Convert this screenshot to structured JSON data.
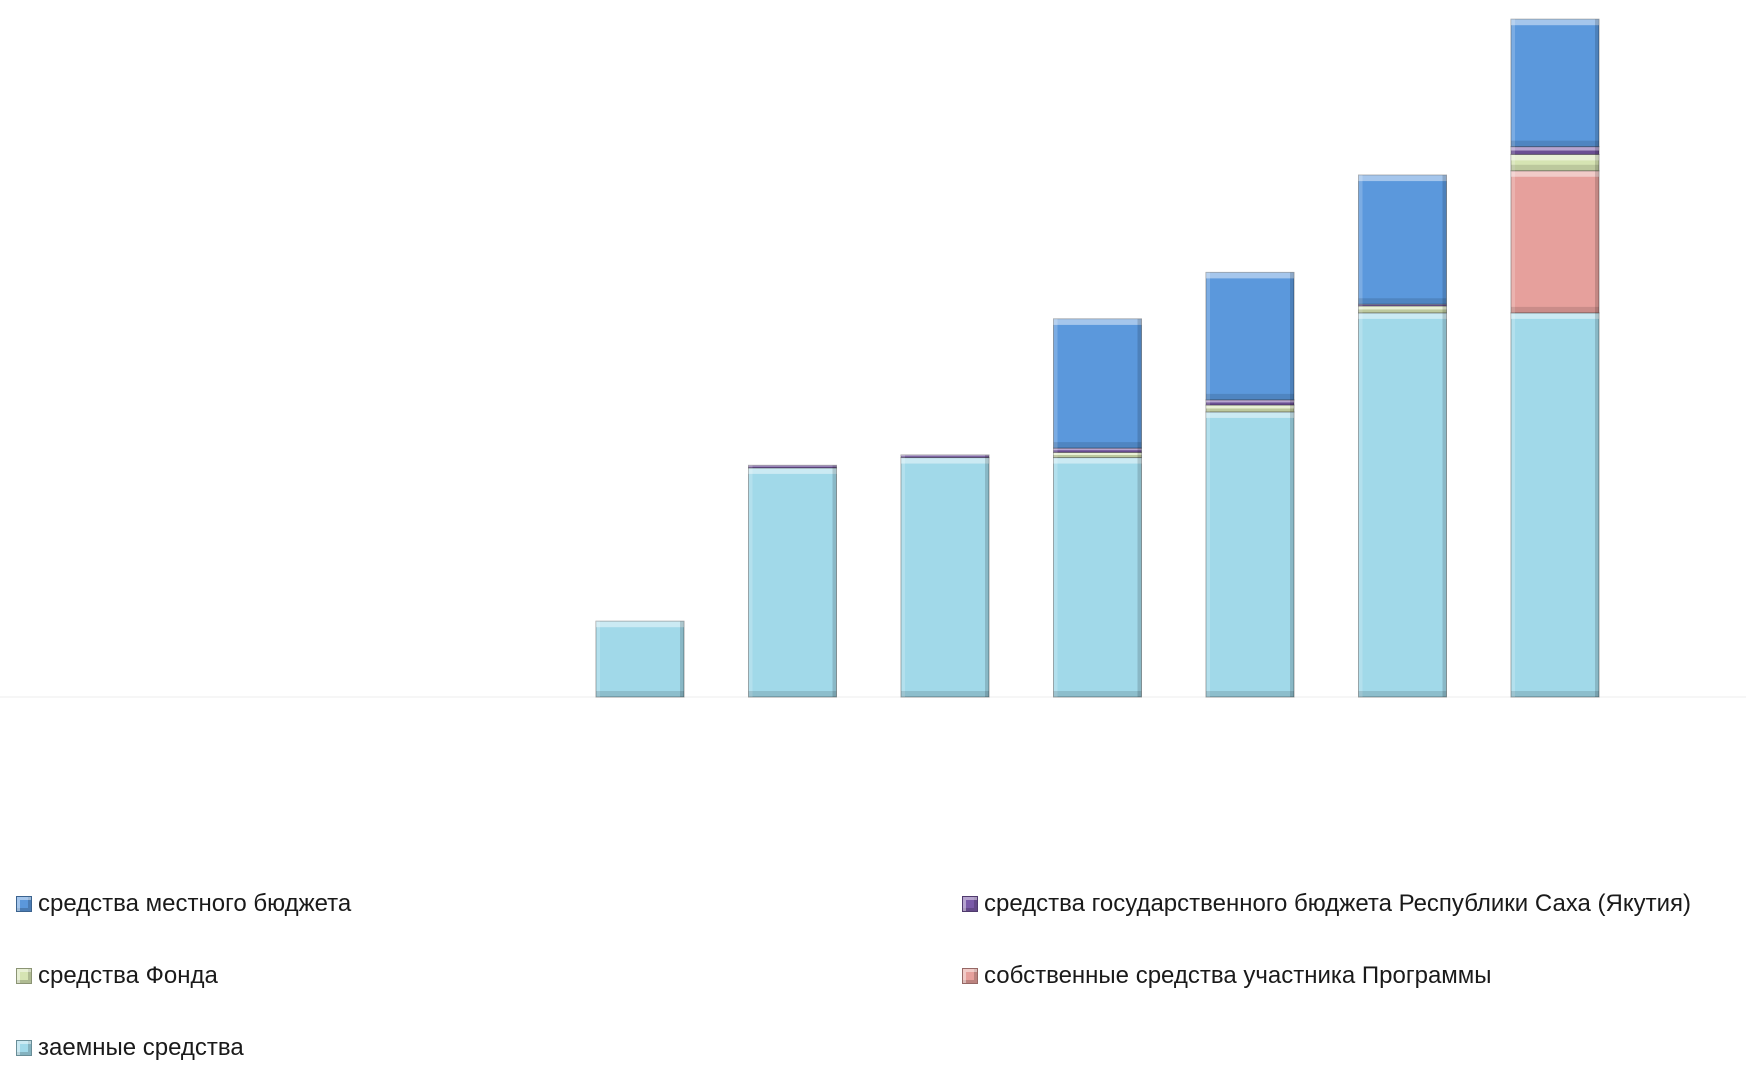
{
  "chart_data": {
    "type": "bar",
    "stacked": true,
    "categories": [
      "",
      "",
      "",
      "",
      "",
      "",
      "",
      "",
      "",
      "",
      "",
      ""
    ],
    "ylim": [
      0,
      8000
    ],
    "grid": false,
    "legend_position": "bottom",
    "series": [
      {
        "name": "заемные средства",
        "color": "#a1d9e9",
        "values": [
          0,
          0,
          0,
          0,
          880,
          2660,
          2780,
          2780,
          3310,
          4460,
          4460,
          0
        ]
      },
      {
        "name": "собственные средства участника Программы",
        "color": "#e6a09c",
        "values": [
          0,
          0,
          0,
          0,
          0,
          0,
          0,
          0,
          0,
          0,
          1650,
          0
        ]
      },
      {
        "name": "средства Фонда",
        "color": "#d6e4b3",
        "values": [
          0,
          0,
          0,
          0,
          0,
          0,
          0,
          60,
          80,
          80,
          190,
          0
        ]
      },
      {
        "name": "средства государственного бюджета Республики Саха (Якутия)",
        "color": "#7a5aa8",
        "values": [
          0,
          0,
          0,
          0,
          0,
          30,
          30,
          50,
          60,
          20,
          90,
          0
        ]
      },
      {
        "name": "средства местного бюджета",
        "color": "#5b98dc",
        "values": [
          0,
          0,
          0,
          0,
          0,
          0,
          0,
          1500,
          1480,
          1500,
          1480,
          0
        ]
      }
    ]
  },
  "legend": {
    "items": [
      {
        "label": "средства местного бюджета",
        "color": "#5b98dc"
      },
      {
        "label": "средства государственного бюджета Республики Саха (Якутия)",
        "color": "#7a5aa8"
      },
      {
        "label": "средства Фонда",
        "color": "#d6e4b3"
      },
      {
        "label": "собственные средства участника Программы",
        "color": "#e6a09c"
      },
      {
        "label": "заемные средства",
        "color": "#a1d9e9"
      }
    ]
  }
}
